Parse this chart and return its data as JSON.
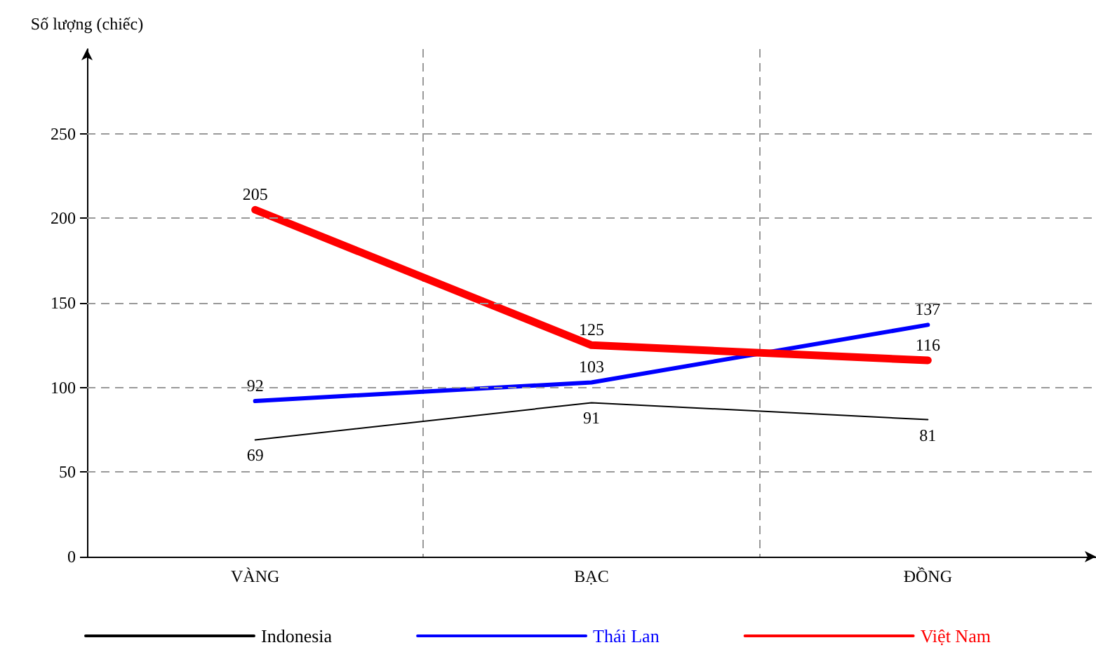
{
  "chart_data": {
    "type": "line",
    "ylabel": "Số lượng (chiếc)",
    "categories": [
      "VÀNG",
      "BẠC",
      "ĐỒNG"
    ],
    "series": [
      {
        "name": "Indonesia",
        "color": "#000000",
        "values": [
          69,
          91,
          81
        ]
      },
      {
        "name": "Thái Lan",
        "color": "#0000ff",
        "values": [
          92,
          103,
          137
        ]
      },
      {
        "name": "Việt Nam",
        "color": "#ff0000",
        "values": [
          205,
          125,
          116
        ]
      }
    ],
    "ylim": [
      0,
      300
    ],
    "yticks": [
      0,
      50,
      100,
      150,
      200,
      250
    ],
    "grid": true,
    "legend": "bottom",
    "marker": "none",
    "line_style": "solid",
    "data_labels": true
  }
}
